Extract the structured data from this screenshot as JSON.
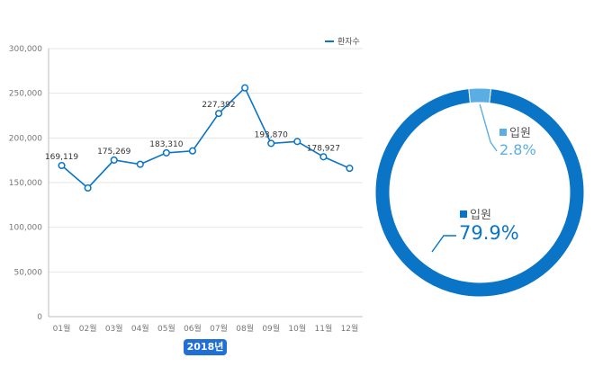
{
  "chart_data": [
    {
      "type": "line",
      "categories": [
        "01월",
        "02월",
        "03월",
        "04월",
        "05월",
        "06월",
        "07월",
        "08월",
        "09월",
        "10월",
        "11월",
        "12월"
      ],
      "series": [
        {
          "name": "환자수",
          "values": [
            169119,
            144000,
            175269,
            170500,
            183310,
            185500,
            227392,
            256000,
            193870,
            196000,
            178927,
            166000
          ]
        }
      ],
      "data_labels": [
        "169,119",
        "",
        "175,269",
        "",
        "183,310",
        "",
        "227,392",
        "",
        "193,870",
        "",
        "178,927",
        ""
      ],
      "ylim": [
        0,
        300000
      ],
      "yticks": [
        "0",
        "50,000",
        "100,000",
        "150,000",
        "200,000",
        "250,000",
        "300,000"
      ],
      "grid": true,
      "legend": "top-right",
      "color": "#0a74c6",
      "xgroup_label": "2018년"
    },
    {
      "type": "pie",
      "style": "donut",
      "slices": [
        {
          "name": "입원",
          "value": 79.9,
          "label": "79.9%",
          "color": "#0a74c6"
        },
        {
          "name": "입원",
          "value": 2.8,
          "label": "2.8%",
          "color": "#5aaee3"
        }
      ]
    }
  ]
}
